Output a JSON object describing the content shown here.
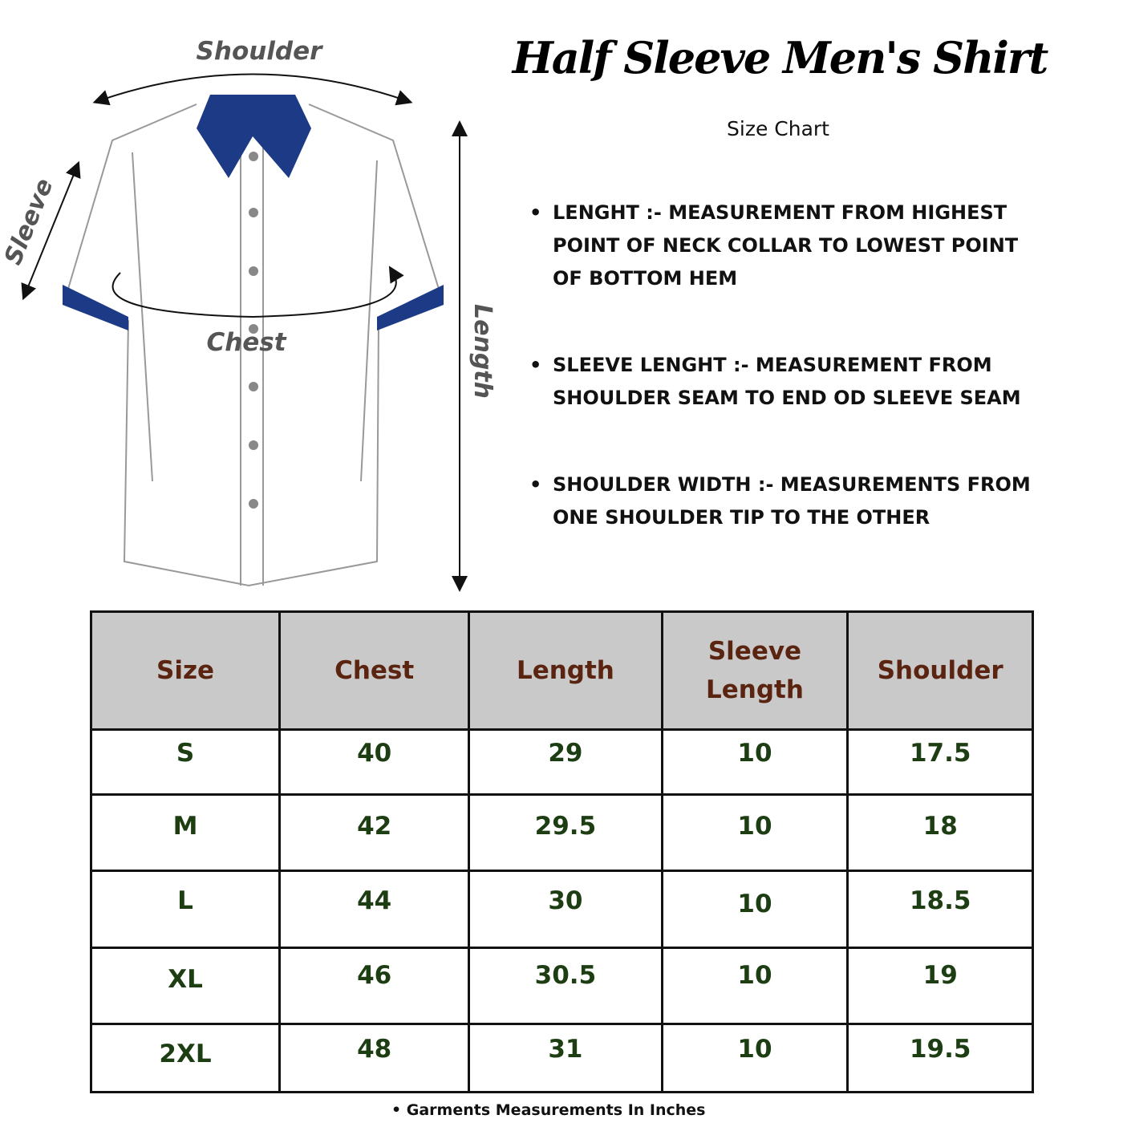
{
  "title": "Half Sleeve Men's Shirt",
  "subtitle": "Size Chart",
  "diagram": {
    "labels": {
      "shoulder": "Shoulder",
      "sleeve": "Sleeve",
      "chest": "Chest",
      "length": "Length"
    },
    "colors": {
      "collar": "#1c3a86",
      "outline": "#999999",
      "arrows": "#111111",
      "labels": "#555555"
    }
  },
  "definitions": [
    {
      "text": "LENGHT :- MEASUREMENT FROM HIGHEST\nPOINT OF NECK COLLAR TO LOWEST POINT\nOF BOTTOM HEM"
    },
    {
      "text": " SLEEVE LENGHT :- MEASUREMENT FROM\nSHOULDER SEAM TO END OD SLEEVE SEAM"
    },
    {
      "text": "SHOULDER WIDTH :- MEASUREMENTS FROM\nONE SHOULDER TIP TO THE OTHER"
    }
  ],
  "table": {
    "headers": [
      "Size",
      "Chest",
      "Length",
      "Sleeve Length",
      "Shoulder"
    ],
    "rows": [
      [
        "S",
        "40",
        "29",
        "10",
        "17.5"
      ],
      [
        "M",
        "42",
        "29.5",
        "10",
        "18"
      ],
      [
        "L",
        "44",
        "30",
        "10",
        "18.5"
      ],
      [
        "XL",
        "46",
        "30.5",
        "10",
        "19"
      ],
      [
        "2XL",
        "48",
        "31",
        "10",
        "19.5"
      ]
    ],
    "colors": {
      "header_bg": "#c9c9c9",
      "header_text": "#5a2410",
      "cell_text": "#1d3d12"
    }
  },
  "footer": "Garments Measurements In Inches"
}
